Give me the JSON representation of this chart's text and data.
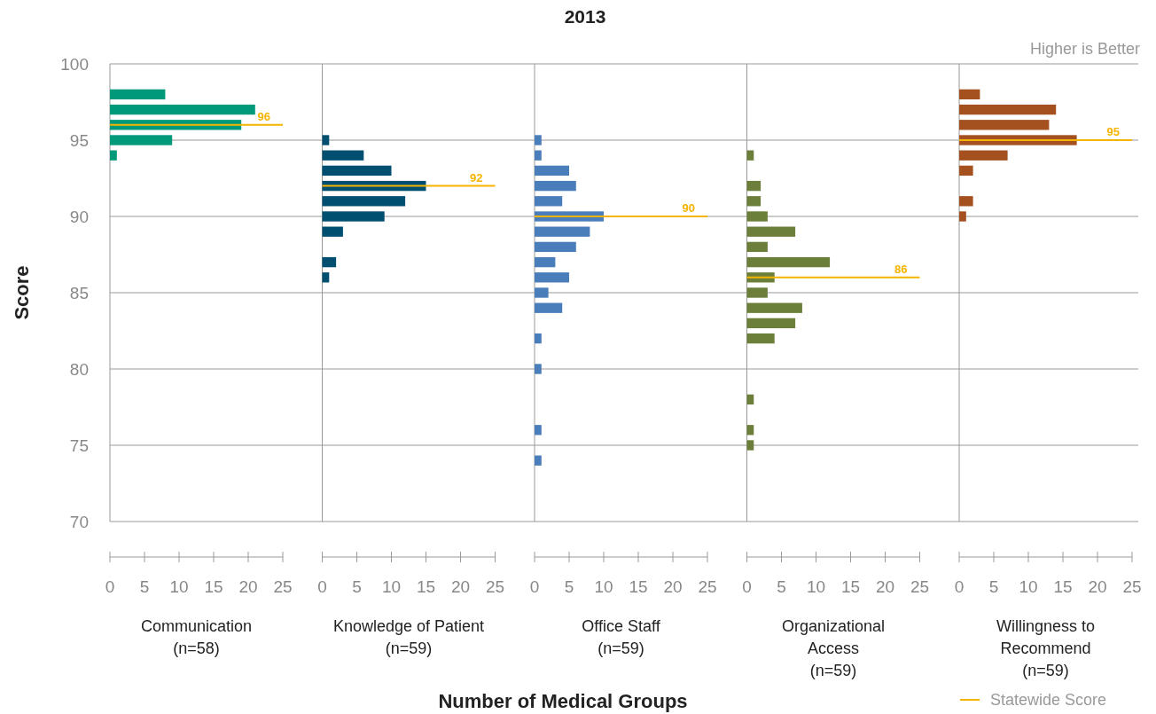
{
  "chart_data": [
    {
      "type": "bar",
      "orientation": "horizontal",
      "ylabel": "Score",
      "xlabel": "Communication\n(n=58)",
      "annotations": [
        "Higher is Better"
      ],
      "x": [
        98,
        97,
        96,
        95,
        94
      ],
      "series": [
        {
          "color": "#00997a",
          "values": [
            8,
            21,
            19,
            9,
            1
          ]
        }
      ],
      "xlim": [
        0,
        25
      ],
      "xticks": [
        0,
        5,
        10,
        15,
        20,
        25
      ],
      "ylim": [
        70,
        100
      ],
      "yticks": [
        70,
        75,
        80,
        85,
        90,
        95,
        100
      ],
      "grid": "y",
      "ref_lines": [
        {
          "axis": "y",
          "value": 96,
          "label": "96",
          "color": "#f5b400"
        }
      ]
    },
    {
      "type": "bar",
      "orientation": "horizontal",
      "xlabel": "Knowledge of Patient\n(n=59)",
      "x": [
        95,
        94,
        93,
        92,
        91,
        90,
        89,
        87,
        86
      ],
      "series": [
        {
          "color": "#004f71",
          "values": [
            1,
            6,
            10,
            15,
            12,
            9,
            3,
            2,
            1
          ]
        }
      ],
      "xlim": [
        0,
        25
      ],
      "xticks": [
        0,
        5,
        10,
        15,
        20,
        25
      ],
      "ylim": [
        70,
        100
      ],
      "yticks": [
        70,
        75,
        80,
        85,
        90,
        95,
        100
      ],
      "grid": "y",
      "tick_labels": "x",
      "ref_lines": [
        {
          "axis": "y",
          "value": 92,
          "label": "92",
          "color": "#f5b400"
        }
      ]
    },
    {
      "type": "bar",
      "orientation": "horizontal",
      "title": "2013",
      "xlabel": "Office Staff\n(n=59)",
      "annotations": [
        "Number of Medical Groups"
      ],
      "x": [
        95,
        94,
        93,
        92,
        91,
        90,
        89,
        88,
        87,
        86,
        85,
        84,
        82,
        80,
        76,
        74
      ],
      "series": [
        {
          "color": "#4a7ebb",
          "values": [
            1,
            1,
            5,
            6,
            4,
            10,
            8,
            6,
            3,
            5,
            2,
            4,
            1,
            1,
            1,
            1
          ]
        }
      ],
      "xlim": [
        0,
        25
      ],
      "xticks": [
        0,
        5,
        10,
        15,
        20,
        25
      ],
      "ylim": [
        70,
        100
      ],
      "yticks": [
        70,
        75,
        80,
        85,
        90,
        95,
        100
      ],
      "grid": "y",
      "tick_labels": "x",
      "ref_lines": [
        {
          "axis": "y",
          "value": 90,
          "label": "90",
          "color": "#f5b400"
        }
      ]
    },
    {
      "type": "bar",
      "orientation": "horizontal",
      "xlabel": "Organizational\nAccess\n(n=59)",
      "x": [
        94,
        92,
        91,
        90,
        89,
        88,
        87,
        86,
        85,
        84,
        83,
        82,
        78,
        76,
        75
      ],
      "series": [
        {
          "color": "#6b7f3a",
          "values": [
            1,
            2,
            2,
            3,
            7,
            3,
            12,
            4,
            3,
            8,
            7,
            4,
            1,
            1,
            1
          ]
        }
      ],
      "xlim": [
        0,
        25
      ],
      "xticks": [
        0,
        5,
        10,
        15,
        20,
        25
      ],
      "ylim": [
        70,
        100
      ],
      "yticks": [
        70,
        75,
        80,
        85,
        90,
        95,
        100
      ],
      "grid": "y",
      "tick_labels": "x",
      "ref_lines": [
        {
          "axis": "y",
          "value": 86,
          "label": "86",
          "color": "#f5b400"
        }
      ]
    },
    {
      "type": "bar",
      "orientation": "horizontal",
      "xlabel": "Willingness to\nRecommend\n(n=59)",
      "annotations": [
        "Statewide Score"
      ],
      "x": [
        98,
        97,
        96,
        95,
        94,
        93,
        91,
        90
      ],
      "series": [
        {
          "color": "#a4501f",
          "values": [
            3,
            14,
            13,
            17,
            7,
            2,
            2,
            1
          ]
        }
      ],
      "xlim": [
        0,
        25
      ],
      "xticks": [
        0,
        5,
        10,
        15,
        20,
        25
      ],
      "ylim": [
        70,
        100
      ],
      "yticks": [
        70,
        75,
        80,
        85,
        90,
        95,
        100
      ],
      "grid": "y",
      "tick_labels": "x",
      "ref_lines": [
        {
          "axis": "y",
          "value": 95,
          "label": "95",
          "color": "#f5b400"
        }
      ]
    }
  ]
}
